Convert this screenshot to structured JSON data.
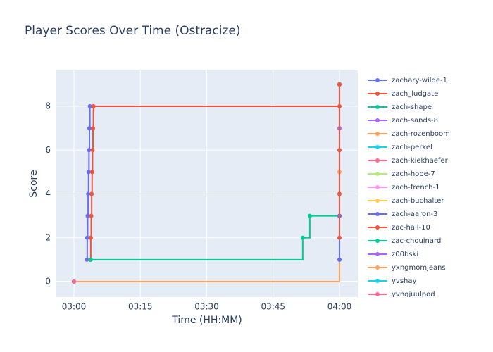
{
  "chart_data": {
    "type": "line",
    "title": "Player Scores Over Time (Ostracize)",
    "x_label": "Time (HH:MM)",
    "y_label": "Score",
    "line_shape": "hv",
    "grid": true,
    "legend": "right",
    "xlim": [
      176.02,
      244.14
    ],
    "ylim": [
      -0.707,
      9.64
    ],
    "xticks": [
      {
        "value": 180,
        "label": "03:00"
      },
      {
        "value": 195,
        "label": "03:15"
      },
      {
        "value": 210,
        "label": "03:30"
      },
      {
        "value": 225,
        "label": "03:45"
      },
      {
        "value": 240,
        "label": "04:00"
      }
    ],
    "yticks": [
      0,
      2,
      4,
      6,
      8
    ],
    "series": [
      {
        "name": "zachary-wilde-1",
        "color": "#636efa",
        "x": [
          182.9,
          183.0,
          183.1,
          183.2,
          183.3,
          183.4,
          183.5,
          183.6,
          240
        ],
        "values": [
          1,
          2,
          3,
          4,
          5,
          6,
          7,
          8,
          9
        ]
      },
      {
        "name": "zach_ludgate",
        "color": "#EF553B",
        "x": [
          183.7,
          183.8,
          183.9,
          184.0,
          184.1,
          184.2,
          184.3,
          184.4,
          240,
          240
        ],
        "values": [
          1,
          2,
          3,
          4,
          5,
          6,
          7,
          8,
          8,
          9
        ]
      },
      {
        "name": "zach-shape",
        "color": "#00cc96",
        "x": [
          183.8,
          231.7,
          233.3,
          240
        ],
        "values": [
          1,
          2,
          3,
          3
        ]
      },
      {
        "name": "zach-sands-8",
        "color": "#ab63fa",
        "x": [
          240,
          240,
          240,
          240
        ],
        "values": [
          9,
          7,
          3,
          1
        ]
      },
      {
        "name": "zach-rozenboom",
        "color": "#FFA15A",
        "x": [
          180,
          240
        ],
        "values": [
          0,
          5
        ]
      },
      {
        "name": "zach-perkel",
        "color": "#19d3f3",
        "x": [
          180
        ],
        "values": [
          0
        ]
      },
      {
        "name": "zach-kiekhaefer",
        "color": "#FF6692",
        "x": [
          180
        ],
        "values": [
          0
        ]
      },
      {
        "name": "zach-hope-7",
        "color": "#B6E880",
        "x": [
          180
        ],
        "values": [
          0
        ]
      },
      {
        "name": "zach-french-1",
        "color": "#FF97FF",
        "x": [
          180
        ],
        "values": [
          0
        ]
      },
      {
        "name": "zach-buchalter",
        "color": "#FECB52",
        "x": [
          180
        ],
        "values": [
          0
        ]
      },
      {
        "name": "zach-aaron-3",
        "color": "#636efa",
        "x": [
          240,
          240
        ],
        "values": [
          3,
          1
        ]
      },
      {
        "name": "zac-hall-10",
        "color": "#EF553B",
        "x": [
          240,
          240,
          240,
          240
        ],
        "values": [
          2,
          4,
          6,
          9
        ]
      },
      {
        "name": "zac-chouinard",
        "color": "#00cc96",
        "x": [
          180
        ],
        "values": [
          0
        ]
      },
      {
        "name": "z00bski",
        "color": "#ab63fa",
        "x": [
          180
        ],
        "values": [
          0
        ]
      },
      {
        "name": "yxngmomjeans",
        "color": "#FFA15A",
        "x": [
          180
        ],
        "values": [
          0
        ]
      },
      {
        "name": "yvshay",
        "color": "#19d3f3",
        "x": [
          180
        ],
        "values": [
          0
        ]
      },
      {
        "name": "yvngjuulpod",
        "color": "#FF6692",
        "x": [
          180
        ],
        "values": [
          0
        ]
      }
    ]
  }
}
